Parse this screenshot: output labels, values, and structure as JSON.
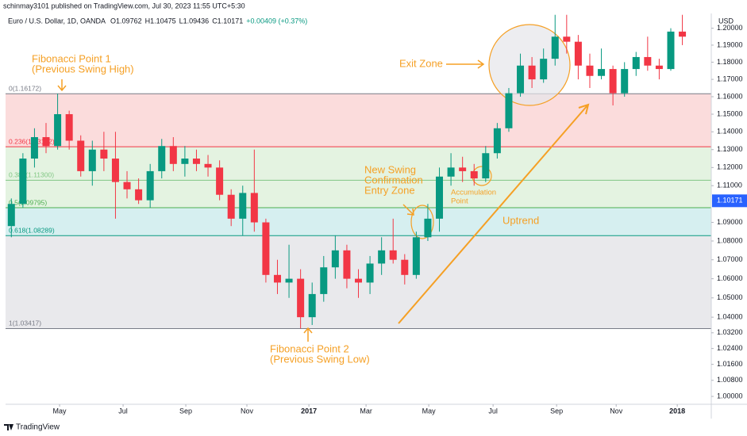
{
  "chart_data": {
    "type": "candlestick",
    "publisher": "schinmay3101 published on TradingView.com, Jul 30, 2023 11:55 UTC+5:30",
    "symbol": "Euro / U.S. Dollar, 1D, OANDA",
    "ohlc_legend": [
      "O1.09762",
      "H1.10475",
      "L1.09436",
      "C1.10171",
      "+0.00409 (+0.37%)"
    ],
    "currency": "USD",
    "brand": "TradingView",
    "up_color": "#089981",
    "down_color": "#f23645",
    "log_scale": true,
    "x": [
      0.5,
      1.5,
      2.5,
      3.5,
      4.5,
      5.5,
      6.5,
      7.5,
      8.5,
      9.5,
      10.5,
      11.5,
      12.5,
      13.5,
      14.5,
      15.5,
      16.5,
      17.5,
      18.5,
      19.5,
      20.5,
      21.5,
      22.5,
      23.5,
      24.5,
      25.5,
      26.5,
      27.5,
      28.5,
      29.5,
      30.5,
      31.5,
      32.5,
      33.5,
      34.5,
      35.5,
      36.5,
      37.5,
      38.5,
      39.5,
      40.5,
      41.5,
      42.5,
      43.5,
      44.5,
      45.5,
      46.5,
      47.5,
      48.5,
      49.5,
      50.5,
      51.5,
      52.5,
      53.5,
      54.5,
      55.5,
      56.5,
      57.5,
      58.5
    ],
    "open": [
      1.088,
      1.1,
      1.125,
      1.137,
      1.132,
      1.15,
      1.135,
      1.118,
      1.13,
      1.125,
      1.112,
      1.108,
      1.102,
      1.118,
      1.132,
      1.122,
      1.125,
      1.122,
      1.12,
      1.105,
      1.092,
      1.106,
      1.09,
      1.062,
      1.058,
      1.06,
      1.04,
      1.052,
      1.066,
      1.075,
      1.06,
      1.058,
      1.068,
      1.075,
      1.07,
      1.062,
      1.082,
      1.092,
      1.115,
      1.12,
      1.118,
      1.114,
      1.128,
      1.142,
      1.162,
      1.178,
      1.17,
      1.182,
      1.195,
      1.192,
      1.178,
      1.172,
      1.176,
      1.162,
      1.176,
      1.183,
      1.178,
      1.176,
      1.198
    ],
    "high": [
      1.103,
      1.128,
      1.142,
      1.145,
      1.1617,
      1.152,
      1.138,
      1.135,
      1.14,
      1.14,
      1.118,
      1.114,
      1.122,
      1.136,
      1.137,
      1.132,
      1.13,
      1.127,
      1.124,
      1.108,
      1.11,
      1.13,
      1.092,
      1.07,
      1.078,
      1.065,
      1.058,
      1.072,
      1.083,
      1.078,
      1.065,
      1.072,
      1.082,
      1.092,
      1.073,
      1.085,
      1.1,
      1.12,
      1.128,
      1.126,
      1.122,
      1.132,
      1.145,
      1.165,
      1.185,
      1.183,
      1.188,
      1.208,
      1.208,
      1.196,
      1.185,
      1.188,
      1.178,
      1.18,
      1.186,
      1.195,
      1.182,
      1.2,
      1.208
    ],
    "low": [
      1.082,
      1.098,
      1.12,
      1.128,
      1.13,
      1.13,
      1.115,
      1.11,
      1.118,
      1.092,
      1.103,
      1.1,
      1.098,
      1.114,
      1.118,
      1.115,
      1.118,
      1.115,
      1.102,
      1.088,
      1.083,
      1.085,
      1.058,
      1.052,
      1.05,
      1.0342,
      1.036,
      1.048,
      1.06,
      1.055,
      1.05,
      1.052,
      1.062,
      1.068,
      1.057,
      1.06,
      1.08,
      1.085,
      1.11,
      1.112,
      1.11,
      1.112,
      1.125,
      1.14,
      1.16,
      1.165,
      1.168,
      1.178,
      1.185,
      1.17,
      1.165,
      1.17,
      1.155,
      1.16,
      1.172,
      1.175,
      1.17,
      1.175,
      1.19
    ],
    "close": [
      1.1,
      1.125,
      1.137,
      1.132,
      1.15,
      1.135,
      1.118,
      1.13,
      1.125,
      1.112,
      1.108,
      1.102,
      1.118,
      1.132,
      1.122,
      1.125,
      1.122,
      1.12,
      1.105,
      1.092,
      1.106,
      1.09,
      1.062,
      1.058,
      1.06,
      1.04,
      1.052,
      1.066,
      1.075,
      1.06,
      1.058,
      1.068,
      1.075,
      1.07,
      1.062,
      1.082,
      1.092,
      1.115,
      1.12,
      1.118,
      1.114,
      1.128,
      1.142,
      1.162,
      1.178,
      1.17,
      1.182,
      1.195,
      1.192,
      1.178,
      1.172,
      1.176,
      1.162,
      1.176,
      1.183,
      1.178,
      1.176,
      1.198,
      1.195
    ],
    "xlim": [
      0,
      61
    ],
    "xticks": [
      {
        "value": 4.67,
        "label": "May"
      },
      {
        "value": 10.16,
        "label": "Jul"
      },
      {
        "value": 15.58,
        "label": "Sep"
      },
      {
        "value": 20.86,
        "label": "Nov"
      },
      {
        "value": 26.22,
        "label": "2017"
      },
      {
        "value": 31.16,
        "label": "Mar"
      },
      {
        "value": 36.58,
        "label": "May"
      },
      {
        "value": 42.14,
        "label": "Jul"
      },
      {
        "value": 47.63,
        "label": "Sep"
      },
      {
        "value": 52.78,
        "label": "Nov"
      },
      {
        "value": 58.06,
        "label": "2018"
      }
    ],
    "ylim": [
      0.9961,
      1.2088
    ],
    "yticks": [
      {
        "value": 1.2,
        "label": "1.20000"
      },
      {
        "value": 1.19,
        "label": "1.19000"
      },
      {
        "value": 1.18,
        "label": "1.18000"
      },
      {
        "value": 1.17,
        "label": "1.17000"
      },
      {
        "value": 1.16,
        "label": "1.16000"
      },
      {
        "value": 1.15,
        "label": "1.15000"
      },
      {
        "value": 1.14,
        "label": "1.14000"
      },
      {
        "value": 1.13,
        "label": "1.13000"
      },
      {
        "value": 1.12,
        "label": "1.12000"
      },
      {
        "value": 1.11,
        "label": "1.11000"
      },
      {
        "value": 1.09,
        "label": "1.09000"
      },
      {
        "value": 1.08,
        "label": "1.08000"
      },
      {
        "value": 1.07,
        "label": "1.07000"
      },
      {
        "value": 1.06,
        "label": "1.06000"
      },
      {
        "value": 1.05,
        "label": "1.05000"
      },
      {
        "value": 1.04,
        "label": "1.04000"
      },
      {
        "value": 1.032,
        "label": "1.03200"
      },
      {
        "value": 1.024,
        "label": "1.02400"
      },
      {
        "value": 1.016,
        "label": "1.01600"
      },
      {
        "value": 1.008,
        "label": "1.00800"
      },
      {
        "value": 1.0,
        "label": "1.00000"
      }
    ],
    "last_price": {
      "value": 1.10171,
      "label": "1.10171",
      "color": "#2962ff"
    },
    "fib_levels": [
      {
        "value": 1.16172,
        "label": "0(1.16172)",
        "color": "#787b86",
        "fill": "#fbdcdc"
      },
      {
        "value": 1.13162,
        "label": "0.236(1.13162)",
        "color": "#f23645",
        "fill": "#e4f3e1"
      },
      {
        "value": 1.113,
        "label": "0.382(1.11300)",
        "color": "#81c784",
        "fill": "#e4f3e1"
      },
      {
        "value": 1.09795,
        "label": "0.5(1.09795)",
        "color": "#4caf50",
        "fill": "#d6eff0"
      },
      {
        "value": 1.08289,
        "label": "0.618(1.08289)",
        "color": "#089981",
        "fill": "#e9e9ec"
      },
      {
        "value": 1.03417,
        "label": "1(1.03417)",
        "color": "#787b86"
      }
    ],
    "annotation_color": "#f5a025",
    "annotations": {
      "point1": [
        "Fibonacci Point 1",
        "(Previous Swing High)"
      ],
      "point2": [
        "Fibonacci Point 2",
        "(Previous Swing Low)"
      ],
      "exit": [
        "Exit Zone"
      ],
      "entry": [
        "New Swing",
        "Confirmation",
        "Entry Zone"
      ],
      "accumulation": [
        "Accumulation",
        "Point"
      ],
      "uptrend": [
        "Uptrend"
      ]
    }
  }
}
